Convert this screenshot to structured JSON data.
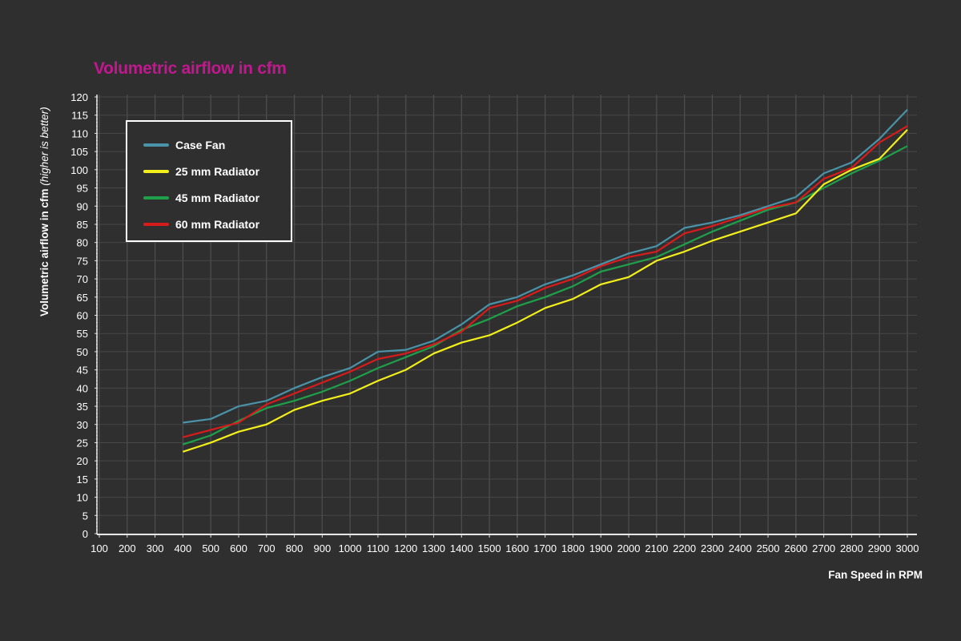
{
  "chart_data": {
    "type": "line",
    "title": "Volumetric airflow in cfm",
    "xlabel": "Fan Speed in RPM",
    "ylabel_main": "Volumetric airflow in cfm",
    "ylabel_note": "(higher is better)",
    "xlim": [
      100,
      3000
    ],
    "ylim": [
      0,
      120
    ],
    "x_ticks": [
      100,
      200,
      300,
      400,
      500,
      600,
      700,
      800,
      900,
      1000,
      1100,
      1200,
      1300,
      1400,
      1500,
      1600,
      1700,
      1800,
      1900,
      2000,
      2100,
      2200,
      2300,
      2400,
      2500,
      2600,
      2700,
      2800,
      2900,
      3000
    ],
    "y_ticks": [
      0,
      5,
      10,
      15,
      20,
      25,
      30,
      35,
      40,
      45,
      50,
      55,
      60,
      65,
      70,
      75,
      80,
      85,
      90,
      95,
      100,
      105,
      110,
      115,
      120
    ],
    "grid": true,
    "legend_position": "top-left",
    "x": [
      400,
      500,
      600,
      700,
      800,
      900,
      1000,
      1100,
      1200,
      1300,
      1400,
      1500,
      1600,
      1700,
      1800,
      1900,
      2000,
      2100,
      2200,
      2300,
      2400,
      2500,
      2600,
      2700,
      2800,
      2900,
      3000
    ],
    "series": [
      {
        "name": "Case Fan",
        "color": "#4a93a8",
        "values": [
          30.5,
          31.5,
          35,
          36.5,
          40,
          43,
          45.5,
          50,
          50.5,
          53,
          57.5,
          63,
          65,
          68.5,
          71,
          74,
          77,
          79,
          84,
          85.5,
          87.5,
          90,
          92.5,
          99,
          102,
          108.5,
          116.5
        ]
      },
      {
        "name": "25 mm Radiator",
        "color": "#f2ef1a",
        "values": [
          22.5,
          25,
          28,
          30,
          34,
          36.5,
          38.5,
          42,
          45,
          49.5,
          52.5,
          54.5,
          58,
          62,
          64.5,
          68.5,
          70.5,
          75,
          77.5,
          80.5,
          83,
          85.5,
          88,
          96,
          100,
          103,
          111
        ]
      },
      {
        "name": "45 mm Radiator",
        "color": "#1ea04a",
        "values": [
          24.5,
          27,
          31,
          34.5,
          36.5,
          39,
          42,
          45.5,
          48.5,
          51.5,
          56,
          59,
          62.5,
          65,
          68,
          72,
          74,
          76,
          79.5,
          83,
          86,
          89,
          91,
          95,
          99,
          102.5,
          106.5
        ]
      },
      {
        "name": "60 mm Radiator",
        "color": "#d81b1b",
        "values": [
          26.5,
          28.5,
          30.5,
          35.5,
          38.5,
          41.5,
          44.5,
          48,
          49.5,
          52,
          55.5,
          62,
          64,
          67.5,
          70,
          73.5,
          76,
          77.5,
          82.5,
          84.5,
          87,
          89.5,
          91,
          97.5,
          100.5,
          107.5,
          112
        ]
      }
    ]
  }
}
